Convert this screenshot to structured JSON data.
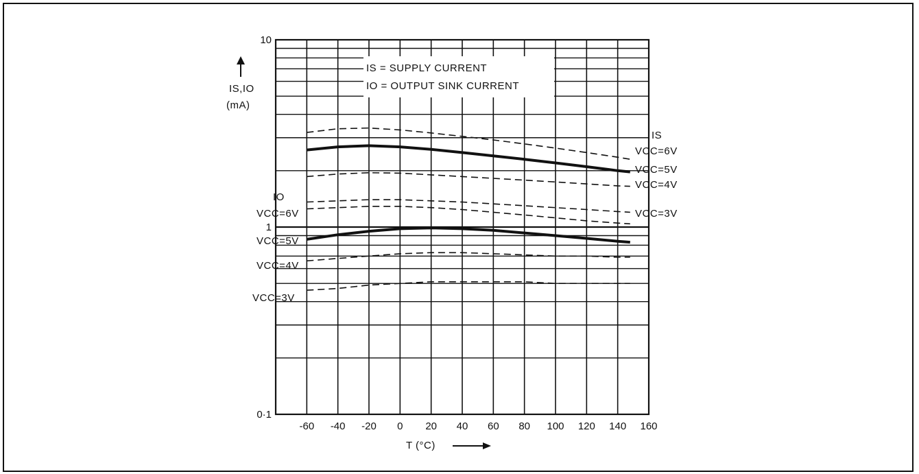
{
  "chart_data": {
    "type": "line",
    "x_scale": "linear",
    "y_scale": "log",
    "xlim": [
      -80,
      160
    ],
    "ylim": [
      0.1,
      10
    ],
    "grid": true,
    "xticks": [
      -60,
      -40,
      -20,
      0,
      20,
      40,
      60,
      80,
      100,
      120,
      140,
      160
    ],
    "yticks": [
      {
        "value": 10,
        "label": "10"
      },
      {
        "value": 1,
        "label": "1"
      },
      {
        "value": 0.1,
        "label": "0·1"
      }
    ],
    "xlabel": "T (°C)",
    "ylabel": "IS,IO",
    "yunit": "(mA)",
    "legend": {
      "line1": "IS = SUPPLY CURRENT",
      "line2": "IO = OUTPUT SINK CURRENT"
    },
    "series": [
      {
        "name": "IS VCC=6V",
        "group": "IS",
        "style": "dashed",
        "x": [
          -60,
          -40,
          -20,
          0,
          20,
          40,
          60,
          80,
          100,
          120,
          140,
          148
        ],
        "y": [
          3.2,
          3.35,
          3.38,
          3.3,
          3.18,
          3.05,
          2.92,
          2.78,
          2.64,
          2.5,
          2.36,
          2.3
        ]
      },
      {
        "name": "IS VCC=5V",
        "group": "IS",
        "style": "solid",
        "x": [
          -60,
          -40,
          -20,
          0,
          20,
          40,
          60,
          80,
          100,
          120,
          140,
          148
        ],
        "y": [
          2.58,
          2.68,
          2.72,
          2.68,
          2.6,
          2.5,
          2.4,
          2.3,
          2.2,
          2.1,
          2.0,
          1.97
        ]
      },
      {
        "name": "IS VCC=4V",
        "group": "IS",
        "style": "dashed",
        "x": [
          -60,
          -40,
          -20,
          0,
          20,
          40,
          60,
          80,
          100,
          120,
          140,
          148
        ],
        "y": [
          1.86,
          1.92,
          1.95,
          1.94,
          1.9,
          1.86,
          1.82,
          1.78,
          1.74,
          1.7,
          1.66,
          1.65
        ]
      },
      {
        "name": "IS VCC=3V",
        "group": "IS",
        "style": "dashed",
        "x": [
          -60,
          -40,
          -20,
          0,
          20,
          40,
          60,
          80,
          100,
          120,
          140,
          148
        ],
        "y": [
          1.36,
          1.38,
          1.4,
          1.4,
          1.38,
          1.36,
          1.33,
          1.3,
          1.27,
          1.24,
          1.21,
          1.2
        ]
      },
      {
        "name": "IO VCC=6V",
        "group": "IO",
        "style": "dashed",
        "x": [
          -60,
          -40,
          -20,
          0,
          20,
          40,
          60,
          80,
          100,
          120,
          140,
          148
        ],
        "y": [
          1.25,
          1.27,
          1.29,
          1.29,
          1.27,
          1.24,
          1.2,
          1.16,
          1.12,
          1.08,
          1.05,
          1.04
        ]
      },
      {
        "name": "IO VCC=5V",
        "group": "IO",
        "style": "solid",
        "x": [
          -60,
          -40,
          -20,
          0,
          20,
          40,
          60,
          80,
          100,
          120,
          140,
          148
        ],
        "y": [
          0.86,
          0.91,
          0.95,
          0.98,
          0.99,
          0.98,
          0.96,
          0.93,
          0.9,
          0.87,
          0.84,
          0.83
        ]
      },
      {
        "name": "IO VCC=4V",
        "group": "IO",
        "style": "dashed",
        "x": [
          -60,
          -40,
          -20,
          0,
          20,
          40,
          60,
          80,
          100,
          120,
          140,
          148
        ],
        "y": [
          0.66,
          0.68,
          0.7,
          0.72,
          0.73,
          0.73,
          0.72,
          0.71,
          0.7,
          0.7,
          0.69,
          0.69
        ]
      },
      {
        "name": "IO VCC=3V",
        "group": "IO",
        "style": "dashed",
        "x": [
          -60,
          -40,
          -20,
          0,
          20,
          40,
          60,
          80,
          100,
          120,
          140,
          148
        ],
        "y": [
          0.46,
          0.47,
          0.49,
          0.5,
          0.51,
          0.51,
          0.51,
          0.51,
          0.5,
          0.5,
          0.5,
          0.5
        ]
      }
    ],
    "annotations": {
      "is_group": "IS",
      "io_group": "IO",
      "is_6v": "VCC=6V",
      "is_5v": "VCC=5V",
      "is_4v": "VCC=4V",
      "is_3v": "VCC=3V",
      "io_6v": "VCC=6V",
      "io_5v": "VCC=5V",
      "io_4v": "VCC=4V",
      "io_3v": "VCC=3V"
    }
  }
}
